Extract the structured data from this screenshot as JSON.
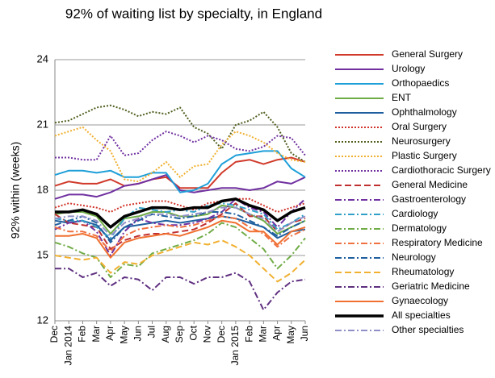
{
  "chart_data": {
    "type": "line",
    "title": "92% of waiting list by specialty, in England",
    "y_label": "92% within (weeks)",
    "categories": [
      "Dec",
      "Jan 2014",
      "Feb",
      "Mar",
      "Apr",
      "May",
      "Jun",
      "Jul",
      "Aug",
      "Sep",
      "Oct",
      "Nov",
      "Dec",
      "Jan 2015",
      "Feb",
      "Mar",
      "Apr",
      "May",
      "Jun"
    ],
    "ylim": [
      12,
      24
    ],
    "yticks": [
      12,
      15,
      18,
      21,
      24
    ],
    "grid": true,
    "legend": "right",
    "series": [
      {
        "name": "General Surgery",
        "color": "#d03a2a",
        "dash": "solid",
        "width": 2,
        "values": [
          18.2,
          18.4,
          18.3,
          18.3,
          18.5,
          18.2,
          18.3,
          18.5,
          18.6,
          18.1,
          18.1,
          18.1,
          18.8,
          19.3,
          19.4,
          19.2,
          19.4,
          19.5,
          19.3
        ]
      },
      {
        "name": "Urology",
        "color": "#7030a0",
        "dash": "solid",
        "width": 2,
        "values": [
          17.6,
          17.8,
          17.8,
          17.7,
          17.9,
          18.2,
          18.3,
          18.5,
          18.7,
          18.0,
          17.9,
          18.0,
          18.1,
          18.1,
          18.0,
          18.1,
          18.4,
          18.3,
          18.6
        ]
      },
      {
        "name": "Orthopaedics",
        "color": "#1f9fd8",
        "dash": "solid",
        "width": 2,
        "values": [
          18.7,
          18.9,
          18.9,
          18.8,
          18.9,
          18.6,
          18.6,
          18.8,
          18.8,
          17.9,
          18.0,
          18.3,
          19.2,
          19.6,
          19.7,
          19.8,
          19.8,
          19.0,
          18.6
        ]
      },
      {
        "name": "ENT",
        "color": "#6fac46",
        "dash": "solid",
        "width": 2,
        "values": [
          16.9,
          17.0,
          17.0,
          16.8,
          16.0,
          16.7,
          16.8,
          17.0,
          17.0,
          16.8,
          16.8,
          16.9,
          17.3,
          17.2,
          16.9,
          16.6,
          16.0,
          16.3,
          16.6
        ]
      },
      {
        "name": "Ophthalmology",
        "color": "#1f5f9f",
        "dash": "solid",
        "width": 2,
        "values": [
          16.6,
          16.5,
          16.6,
          16.4,
          15.7,
          16.3,
          16.4,
          16.5,
          16.6,
          16.5,
          16.6,
          16.7,
          16.8,
          16.7,
          16.5,
          16.3,
          15.8,
          16.1,
          16.2
        ]
      },
      {
        "name": "Oral Surgery",
        "color": "#d0342a",
        "dash": "dotted",
        "width": 2,
        "values": [
          17.2,
          17.4,
          17.3,
          17.2,
          17.0,
          17.3,
          17.4,
          17.5,
          17.5,
          17.3,
          17.1,
          17.4,
          17.5,
          17.6,
          17.6,
          17.3,
          17.0,
          17.2,
          17.4
        ]
      },
      {
        "name": "Neurosurgery",
        "color": "#4f5f1f",
        "dash": "dotted",
        "width": 2,
        "values": [
          21.1,
          21.2,
          21.5,
          21.8,
          21.9,
          21.7,
          21.4,
          21.6,
          21.5,
          21.8,
          20.9,
          20.6,
          19.9,
          21.0,
          21.2,
          21.6,
          20.9,
          19.7,
          19.3
        ]
      },
      {
        "name": "Plastic Surgery",
        "color": "#f0b030",
        "dash": "dotted",
        "width": 2,
        "values": [
          20.5,
          20.7,
          20.9,
          20.3,
          19.8,
          18.5,
          18.4,
          18.8,
          19.3,
          18.6,
          19.1,
          19.2,
          20.1,
          20.7,
          20.5,
          20.2,
          19.7,
          19.4,
          19.3
        ]
      },
      {
        "name": "Cardiothoracic Surgery",
        "color": "#7030a0",
        "dash": "dotted",
        "width": 2,
        "values": [
          19.5,
          19.5,
          19.4,
          19.4,
          20.5,
          19.6,
          19.7,
          20.3,
          20.7,
          20.5,
          20.2,
          20.5,
          20.3,
          19.9,
          19.8,
          20.0,
          20.5,
          20.4,
          19.6
        ]
      },
      {
        "name": "General Medicine",
        "color": "#c03030",
        "dash": "dashed",
        "width": 2,
        "values": [
          16.9,
          16.5,
          16.4,
          16.3,
          15.3,
          15.7,
          15.9,
          16.0,
          16.0,
          16.1,
          16.2,
          16.5,
          16.9,
          17.4,
          16.8,
          16.8,
          16.1,
          16.5,
          16.7
        ]
      },
      {
        "name": "Gastroenterology",
        "color": "#7030a0",
        "dash": "dashdot",
        "width": 2,
        "values": [
          16.2,
          16.5,
          16.6,
          16.1,
          15.0,
          16.1,
          16.7,
          16.5,
          16.4,
          16.4,
          16.5,
          16.7,
          17.0,
          17.6,
          17.2,
          17.0,
          16.3,
          17.0,
          17.6
        ]
      },
      {
        "name": "Cardiology",
        "color": "#30a0c8",
        "dash": "dashdot",
        "width": 2,
        "values": [
          16.7,
          16.6,
          16.6,
          16.3,
          15.8,
          16.7,
          17.2,
          17.1,
          17.0,
          17.1,
          17.0,
          17.3,
          17.4,
          17.3,
          17.1,
          16.9,
          16.2,
          16.5,
          16.9
        ]
      },
      {
        "name": "Dermatology",
        "color": "#70ac46",
        "dash": "dashdot",
        "width": 2,
        "values": [
          15.6,
          15.4,
          15.1,
          14.9,
          14.0,
          14.6,
          14.5,
          15.1,
          15.3,
          15.5,
          15.7,
          16.0,
          16.5,
          16.3,
          15.8,
          15.3,
          14.4,
          15.0,
          15.8
        ]
      },
      {
        "name": "Respiratory Medicine",
        "color": "#f07040",
        "dash": "dashdot",
        "width": 2,
        "values": [
          16.3,
          16.1,
          16.1,
          15.9,
          15.2,
          15.9,
          16.2,
          16.3,
          16.4,
          16.3,
          16.4,
          16.6,
          16.8,
          16.7,
          16.3,
          16.0,
          15.4,
          15.9,
          16.2
        ]
      },
      {
        "name": "Neurology",
        "color": "#1f5f9f",
        "dash": "dashdot",
        "width": 2,
        "values": [
          16.4,
          16.6,
          16.8,
          16.5,
          15.6,
          16.3,
          16.6,
          16.9,
          16.8,
          16.7,
          16.8,
          17.0,
          17.0,
          16.9,
          16.6,
          16.3,
          15.9,
          16.3,
          16.6
        ]
      },
      {
        "name": "Rheumatology",
        "color": "#f0b030",
        "dash": "dashed",
        "width": 2,
        "values": [
          15.0,
          14.9,
          14.8,
          14.9,
          14.2,
          14.7,
          14.6,
          15.0,
          15.2,
          15.4,
          15.6,
          15.5,
          15.7,
          15.4,
          15.0,
          14.4,
          13.8,
          14.2,
          14.8
        ]
      },
      {
        "name": "Geriatric Medicine",
        "color": "#5f3080",
        "dash": "dashdot",
        "width": 2,
        "values": [
          14.4,
          14.4,
          14.0,
          14.2,
          13.6,
          14.0,
          13.9,
          13.4,
          14.0,
          14.0,
          13.7,
          14.0,
          14.0,
          14.2,
          13.8,
          12.5,
          13.3,
          13.8,
          13.9
        ]
      },
      {
        "name": "Gynaecology",
        "color": "#f07030",
        "dash": "solid",
        "width": 2,
        "values": [
          15.9,
          15.9,
          16.0,
          15.8,
          14.9,
          15.6,
          15.8,
          15.9,
          16.0,
          15.9,
          16.1,
          16.3,
          16.6,
          16.5,
          16.1,
          16.1,
          15.5,
          16.1,
          16.3
        ]
      },
      {
        "name": "All specialties",
        "color": "#000000",
        "dash": "solid",
        "width": 3.5,
        "values": [
          17.0,
          17.0,
          17.1,
          16.9,
          16.3,
          16.8,
          17.0,
          17.2,
          17.2,
          17.1,
          17.2,
          17.2,
          17.5,
          17.6,
          17.3,
          17.1,
          16.6,
          17.0,
          17.2
        ]
      },
      {
        "name": "Other specialties",
        "color": "#9090c8",
        "dash": "dashdot",
        "width": 2,
        "values": [
          16.7,
          16.8,
          16.8,
          16.6,
          15.9,
          16.5,
          16.7,
          16.9,
          16.9,
          16.8,
          16.9,
          17.0,
          17.2,
          17.2,
          16.9,
          16.7,
          16.1,
          16.5,
          16.8
        ]
      }
    ]
  }
}
